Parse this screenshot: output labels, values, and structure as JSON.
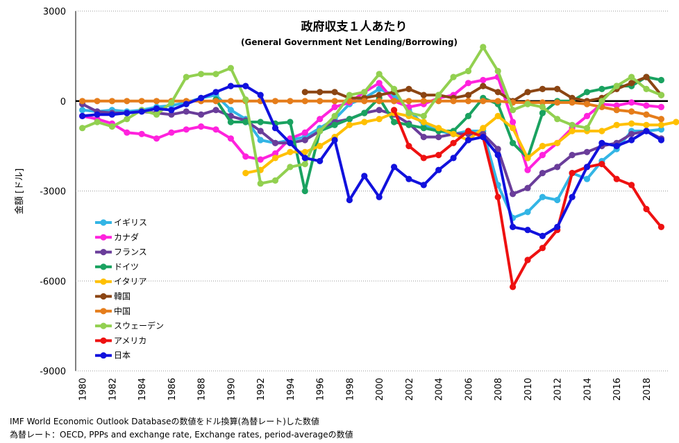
{
  "chart_data": {
    "type": "line",
    "title": "政府収支１人あたり",
    "subtitle": "(General Government Net Lending/Borrowing)",
    "ylabel": "金額 [ドル]",
    "xlabel": "",
    "xlim": [
      1980,
      2019
    ],
    "ylim": [
      -9000,
      3000
    ],
    "yticks": [
      3000,
      0,
      -3000,
      -6000,
      -9000
    ],
    "xticks": [
      1980,
      1982,
      1984,
      1986,
      1988,
      1990,
      1992,
      1994,
      1996,
      1998,
      2000,
      2002,
      2004,
      2006,
      2008,
      2010,
      2012,
      2014,
      2016,
      2018
    ],
    "grid": "horizontal dotted",
    "legend_position": "lower-left",
    "series": [
      {
        "name": "イギリス",
        "color": "#33b5e5",
        "start": 1980,
        "values": [
          -300,
          -350,
          -300,
          -350,
          -300,
          -200,
          -150,
          -50,
          100,
          200,
          -300,
          -600,
          -1300,
          -1400,
          -1300,
          -1200,
          -900,
          -600,
          -100,
          100,
          400,
          200,
          -300,
          -800,
          -1000,
          -1100,
          -1000,
          -1000,
          -2800,
          -3900,
          -3700,
          -3200,
          -3300,
          -2400,
          -2600,
          -2000,
          -1600,
          -1000,
          -1000,
          -950
        ]
      },
      {
        "name": "カナダ",
        "color": "#ff22dd",
        "start": 1980,
        "values": [
          -500,
          -600,
          -750,
          -1050,
          -1100,
          -1250,
          -1050,
          -950,
          -850,
          -950,
          -1250,
          -1850,
          -1950,
          -1750,
          -1250,
          -1050,
          -600,
          -200,
          -50,
          300,
          600,
          0,
          -200,
          -100,
          100,
          200,
          600,
          700,
          800,
          -700,
          -2300,
          -1800,
          -1400,
          -900,
          -500,
          -100,
          -150,
          -50,
          -150,
          -200
        ]
      },
      {
        "name": "フランス",
        "color": "#6a3d9a",
        "start": 1980,
        "values": [
          -100,
          -350,
          -400,
          -400,
          -350,
          -400,
          -450,
          -350,
          -450,
          -300,
          -500,
          -650,
          -1000,
          -1400,
          -1400,
          -1300,
          -1000,
          -700,
          -600,
          -400,
          -300,
          -450,
          -750,
          -1200,
          -1200,
          -1100,
          -1100,
          -1100,
          -1600,
          -3100,
          -2900,
          -2400,
          -2200,
          -1800,
          -1700,
          -1500,
          -1400,
          -1100,
          -1000,
          -1250
        ]
      },
      {
        "name": "ドイツ",
        "color": "#1aa260",
        "start": 1989,
        "values": [
          50,
          -700,
          -700,
          -700,
          -750,
          -700,
          -3000,
          -1000,
          -800,
          -600,
          -400,
          100,
          -700,
          -800,
          -900,
          -1000,
          -1000,
          -500,
          100,
          -100,
          -1400,
          -1900,
          -400,
          0,
          0,
          300,
          400,
          500,
          500,
          800,
          700
        ]
      },
      {
        "name": "イタリア",
        "color": "#ffc000",
        "start": 1991,
        "values": [
          -2400,
          -2300,
          -1900,
          -1700,
          -1700,
          -1500,
          -1200,
          -800,
          -700,
          -600,
          -400,
          -500,
          -700,
          -900,
          -1100,
          -1300,
          -900,
          -500,
          -900,
          -1900,
          -1500,
          -1400,
          -1000,
          -1000,
          -1000,
          -800,
          -750,
          -800,
          -800,
          -700
        ]
      },
      {
        "name": "韓国",
        "color": "#8b4513",
        "start": 1995,
        "values": [
          300,
          300,
          300,
          100,
          100,
          200,
          300,
          400,
          200,
          200,
          100,
          200,
          500,
          300,
          0,
          300,
          400,
          400,
          100,
          0,
          100,
          400,
          600,
          800,
          200
        ]
      },
      {
        "name": "中国",
        "color": "#e57d1b",
        "start": 1980,
        "values": [
          0,
          0,
          0,
          0,
          0,
          0,
          0,
          0,
          0,
          0,
          0,
          0,
          0,
          0,
          0,
          0,
          0,
          0,
          0,
          0,
          0,
          0,
          0,
          0,
          0,
          0,
          0,
          0,
          0,
          -50,
          -50,
          -50,
          -50,
          -50,
          -100,
          -200,
          -300,
          -350,
          -450,
          -600
        ]
      },
      {
        "name": "スウェーデン",
        "color": "#92d050",
        "start": 1980,
        "values": [
          -900,
          -700,
          -850,
          -600,
          -300,
          -450,
          -50,
          800,
          900,
          900,
          1100,
          50,
          -2750,
          -2650,
          -2200,
          -2100,
          -1000,
          -500,
          200,
          300,
          900,
          400,
          -400,
          -500,
          200,
          800,
          1000,
          1800,
          1000,
          -300,
          -100,
          -200,
          -600,
          -800,
          -900,
          0,
          500,
          800,
          400,
          200
        ]
      },
      {
        "name": "アメリカ",
        "color": "#ee1111",
        "start": 2001,
        "values": [
          -300,
          -1500,
          -1900,
          -1800,
          -1400,
          -1000,
          -1200,
          -3200,
          -6200,
          -5300,
          -4900,
          -4300,
          -2400,
          -2200,
          -2100,
          -2600,
          -2800,
          -3600,
          -4200
        ]
      },
      {
        "name": "日本",
        "color": "#1111dd",
        "start": 1980,
        "values": [
          -500,
          -450,
          -450,
          -400,
          -350,
          -250,
          -300,
          -100,
          100,
          300,
          500,
          500,
          200,
          -900,
          -1400,
          -1900,
          -2000,
          -1300,
          -3300,
          -2500,
          -3200,
          -2200,
          -2600,
          -2800,
          -2300,
          -1900,
          -1300,
          -1200,
          -1800,
          -4200,
          -4300,
          -4500,
          -4200,
          -3200,
          -2200,
          -1400,
          -1500,
          -1300,
          -1000,
          -1300
        ]
      }
    ]
  },
  "footnotes": {
    "line1": "IMF World Economic Outlook Databaseの数値をドル換算(為替レート)した数値",
    "line2": "為替レート：OECD, PPPs and exchange rate, Exchange rates, period-averageの数値"
  }
}
